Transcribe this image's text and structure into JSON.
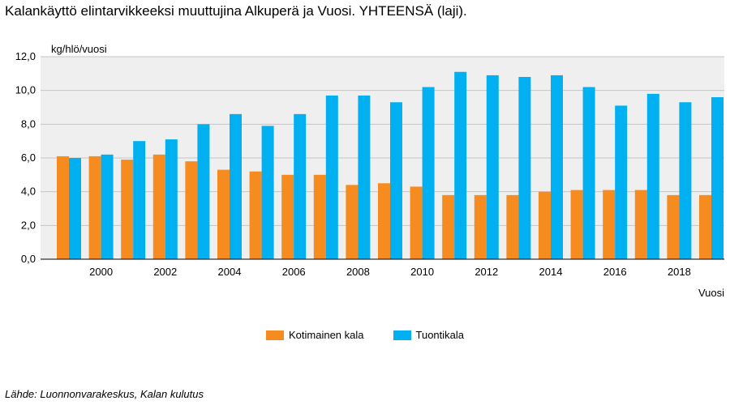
{
  "title": "Kalankäyttö elintarvikkeeksi muuttujina Alkuperä ja Vuosi. YHTEENSÄ (laji).",
  "source": "Lähde: Luonnonvarakeskus, Kalan kulutus",
  "colors": {
    "plot_bg": "#efefef",
    "grid": "#c4c4c4"
  },
  "chart_data": {
    "type": "bar",
    "ylabel": "kg/hlö/vuosi",
    "xlabel": "Vuosi",
    "ylim": [
      0,
      12
    ],
    "y_ticks": [
      "0,0",
      "2,0",
      "4,0",
      "6,0",
      "8,0",
      "10,0",
      "12,0"
    ],
    "x_tick_labels": [
      "2000",
      "2002",
      "2004",
      "2006",
      "2008",
      "2010",
      "2012",
      "2014",
      "2016",
      "2018"
    ],
    "categories": [
      "1999",
      "2000",
      "2001",
      "2002",
      "2003",
      "2004",
      "2005",
      "2006",
      "2007",
      "2008",
      "2009",
      "2010",
      "2011",
      "2012",
      "2013",
      "2014",
      "2015",
      "2016",
      "2017",
      "2018",
      "2019"
    ],
    "series": [
      {
        "name": "Kotimainen kala",
        "color": "#f68b1f",
        "values": [
          6.1,
          6.1,
          5.9,
          6.2,
          5.8,
          5.3,
          5.2,
          5.0,
          5.0,
          4.4,
          4.5,
          4.3,
          3.8,
          3.8,
          3.8,
          4.0,
          4.1,
          4.1,
          4.1,
          3.8,
          3.8
        ]
      },
      {
        "name": "Tuontikala",
        "color": "#00b0f0",
        "values": [
          6.0,
          6.2,
          7.0,
          7.1,
          8.0,
          8.6,
          7.9,
          8.6,
          9.7,
          9.7,
          9.3,
          10.2,
          11.1,
          10.9,
          10.8,
          10.9,
          10.2,
          9.1,
          9.8,
          9.3,
          9.6
        ]
      }
    ],
    "legend": "bottom-center",
    "grid": true
  }
}
